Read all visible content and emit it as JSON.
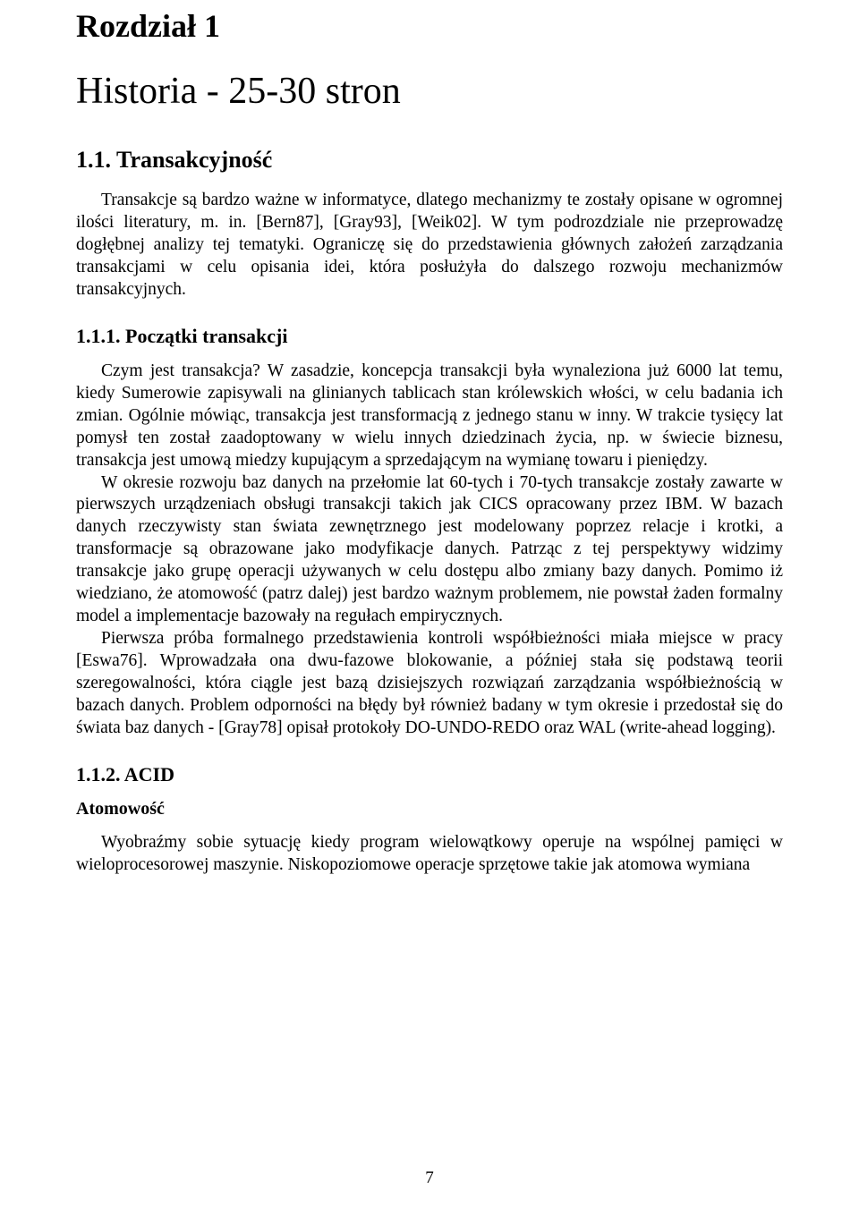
{
  "chapter": {
    "label": "Rozdział 1",
    "title": "Historia - 25-30 stron"
  },
  "section_1_1": {
    "heading": "1.1. Transakcyjność",
    "para1": "Transakcje są bardzo ważne w informatyce, dlatego mechanizmy te zostały opisane w ogromnej ilości literatury, m. in. [Bern87], [Gray93], [Weik02]. W tym podrozdziale nie przeprowadzę dogłębnej analizy tej tematyki. Ograniczę się do przedstawienia głównych założeń zarządzania transakcjami w celu opisania idei, która posłużyła do dalszego rozwoju mechanizmów transakcyjnych."
  },
  "section_1_1_1": {
    "heading": "1.1.1. Początki transakcji",
    "para1": "Czym jest transakcja? W zasadzie, koncepcja transakcji była wynaleziona już 6000 lat temu, kiedy Sumerowie zapisywali na glinianych tablicach stan królewskich włości, w celu badania ich zmian. Ogólnie mówiąc, transakcja jest transformacją z jednego stanu w inny. W trakcie tysięcy lat pomysł ten został zaadoptowany w wielu innych dziedzinach życia, np. w świecie biznesu, transakcja jest umową miedzy kupującym a sprzedającym na wymianę towaru i pieniędzy.",
    "para2": "W okresie rozwoju baz danych na przełomie lat 60-tych i 70-tych transakcje zostały zawarte w pierwszych urządzeniach obsługi transakcji takich jak CICS opracowany przez IBM. W bazach danych rzeczywisty stan świata zewnętrznego jest modelowany poprzez relacje i krotki, a transformacje są obrazowane jako modyfikacje danych. Patrząc z tej perspektywy widzimy transakcje jako grupę operacji używanych w celu dostępu albo zmiany bazy danych. Pomimo iż wiedziano, że atomowość (patrz dalej) jest bardzo ważnym problemem, nie powstał żaden formalny model a implementacje bazowały na regułach empirycznych.",
    "para3": "Pierwsza próba formalnego przedstawienia kontroli współbieżności miała miejsce w pracy [Eswa76]. Wprowadzała ona dwu-fazowe blokowanie, a później stała się podstawą teorii szeregowalności, która ciągle jest bazą dzisiejszych rozwiązań zarządzania współbieżnością w bazach danych. Problem odporności na błędy był również badany w tym okresie i przedostał się do świata baz danych - [Gray78] opisał protokoły DO-UNDO-REDO oraz WAL (write-ahead logging)."
  },
  "section_1_1_2": {
    "heading": "1.1.2. ACID",
    "subheading": "Atomowość",
    "para1": "Wyobraźmy sobie sytuację kiedy program wielowątkowy operuje na wspólnej pamięci w wieloprocesorowej maszynie. Niskopoziomowe operacje sprzętowe takie jak atomowa wymiana"
  },
  "page_number": "7"
}
